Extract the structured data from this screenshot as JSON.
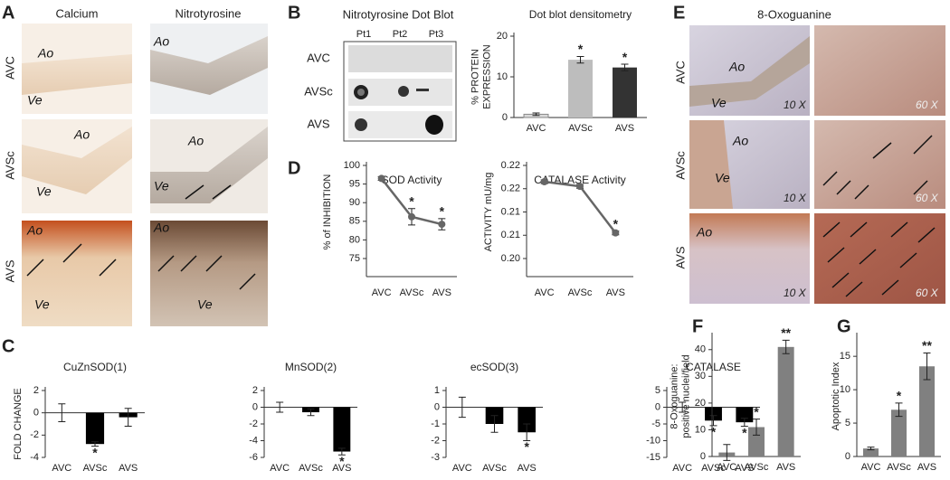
{
  "panels": {
    "A": {
      "label": "A",
      "headers": [
        "Calcium",
        "Nitrotyrosine"
      ],
      "rows": [
        "AVC",
        "AVSc",
        "AVS"
      ],
      "annotations": {
        "ao": "Ao",
        "ve": "Ve"
      }
    },
    "B": {
      "label": "B",
      "title": "Nitrotyrosine Dot Blot",
      "columns": [
        "Pt1",
        "Pt2",
        "Pt3"
      ],
      "rows": [
        "AVC",
        "AVSc",
        "AVS"
      ]
    },
    "C": {
      "label": "C"
    },
    "D": {
      "label": "D"
    },
    "E": {
      "label": "E",
      "title": "8-Oxoguanine",
      "rows": [
        "AVC",
        "AVSc",
        "AVS"
      ],
      "magnifications": [
        "10 X",
        "60 X"
      ],
      "annotations": {
        "ao": "Ao",
        "ve": "Ve"
      }
    },
    "F": {
      "label": "F"
    },
    "G": {
      "label": "G"
    }
  },
  "chart_data": [
    {
      "type": "bar",
      "title": "Dot blot densitometry",
      "ylabel": [
        "% PROTEIN",
        "EXPRESSION"
      ],
      "categories": [
        "AVC",
        "AVSc",
        "AVS"
      ],
      "values": [
        0.8,
        14.2,
        12.3
      ],
      "errors": [
        0.3,
        0.8,
        0.8
      ],
      "colors": [
        "#d9d9d9",
        "#bdbdbd",
        "#333333"
      ],
      "ylim": [
        0,
        20
      ],
      "yticks": [
        0,
        10,
        20
      ],
      "annotations": [
        {
          "x": "AVSc",
          "text": "*"
        },
        {
          "x": "AVS",
          "text": "*"
        }
      ]
    },
    {
      "type": "line",
      "title": "SOD Activity",
      "ylabel": [
        "% of INHIBITION"
      ],
      "categories": [
        "AVC",
        "AVSc",
        "AVS"
      ],
      "values": [
        96.5,
        86.2,
        84.2
      ],
      "errors": [
        0.5,
        2.2,
        1.5
      ],
      "color": "#666666",
      "ylim": [
        75,
        100
      ],
      "yticks": [
        75,
        80,
        85,
        90,
        95,
        100
      ],
      "annotations": [
        {
          "x": "AVSc",
          "text": "*"
        },
        {
          "x": "AVS",
          "text": "*"
        }
      ]
    },
    {
      "type": "line",
      "title": "CATALASE Activity",
      "ylabel": [
        "ACTIVITY mU/mg"
      ],
      "categories": [
        "AVC",
        "AVSc",
        "AVS"
      ],
      "values": [
        0.2165,
        0.2155,
        0.2055
      ],
      "errors": [
        0.0004,
        0.0004,
        0.0004
      ],
      "color": "#666666",
      "ylim": [
        0.2,
        0.22
      ],
      "yticks": [
        {
          "value": 0.2,
          "label": "0.20"
        },
        {
          "value": 0.205,
          "label": "0.21"
        },
        0.21,
        {
          "value": 0.215,
          "label": "0.22"
        },
        0.22
      ],
      "annotations": [
        {
          "x": "AVS",
          "text": "*"
        }
      ]
    },
    {
      "type": "bar",
      "title": "CuZnSOD(1)",
      "ylabel": [
        "FOLD CHANGE"
      ],
      "categories": [
        "AVC",
        "AVSc",
        "AVS"
      ],
      "values": [
        0,
        -2.8,
        -0.4
      ],
      "errors": [
        0.8,
        0.2,
        0.8
      ],
      "colors": [
        "#000000",
        "#000000",
        "#000000"
      ],
      "ylim": [
        -4,
        2
      ],
      "yticks": [
        -4,
        -2,
        0,
        2
      ],
      "annotations": [
        {
          "x": "AVSc",
          "text": "*"
        }
      ]
    },
    {
      "type": "bar",
      "title": "MnSOD(2)",
      "categories": [
        "AVC",
        "AVSc",
        "AVS"
      ],
      "values": [
        0,
        -0.6,
        -5.3
      ],
      "errors": [
        0.6,
        0.4,
        0.4
      ],
      "colors": [
        "#000000",
        "#000000",
        "#000000"
      ],
      "ylim": [
        -6,
        2
      ],
      "yticks": [
        -6,
        -4,
        -2,
        0,
        2
      ],
      "annotations": [
        {
          "x": "AVS",
          "text": "*"
        }
      ]
    },
    {
      "type": "bar",
      "title": "ecSOD(3)",
      "categories": [
        "AVC",
        "AVSc",
        "AVS"
      ],
      "values": [
        0,
        -1,
        -1.5
      ],
      "errors": [
        0.6,
        0.5,
        0.5
      ],
      "colors": [
        "#000000",
        "#000000",
        "#000000"
      ],
      "ylim": [
        -3,
        1
      ],
      "yticks": [
        -3,
        -2,
        -1,
        0,
        1
      ],
      "annotations": [
        {
          "x": "AVS",
          "text": "*"
        }
      ]
    },
    {
      "type": "bar",
      "title": "CATALASE",
      "categories": [
        "AVC",
        "AVSc",
        "AVS"
      ],
      "values": [
        0,
        -4,
        -4.5
      ],
      "errors": [
        1.5,
        1.5,
        1.2
      ],
      "colors": [
        "#000000",
        "#000000",
        "#000000"
      ],
      "ylim": [
        -15,
        5
      ],
      "yticks": [
        -15,
        -10,
        -5,
        0,
        5
      ],
      "annotations": [
        {
          "x": "AVSc",
          "text": "*"
        },
        {
          "x": "AVS",
          "text": "*"
        }
      ]
    },
    {
      "type": "bar",
      "ylabel": [
        "8-Oxoguanine:",
        "positive nuclei/field"
      ],
      "categories": [
        "AVC",
        "AVSc",
        "AVS"
      ],
      "values": [
        1.5,
        11,
        41
      ],
      "errors": [
        3,
        3,
        2.5
      ],
      "colors": [
        "#808080",
        "#808080",
        "#808080"
      ],
      "ylim": [
        0,
        45
      ],
      "yticks": [
        0,
        10,
        20,
        30,
        40
      ],
      "annotations": [
        {
          "x": "AVSc",
          "text": "*"
        },
        {
          "x": "AVS",
          "text": "**"
        }
      ]
    },
    {
      "type": "bar",
      "ylabel": [
        "Apoptotic Index"
      ],
      "categories": [
        "AVC",
        "AVSc",
        "AVS"
      ],
      "values": [
        1.2,
        7,
        13.5
      ],
      "errors": [
        0.2,
        1,
        2
      ],
      "colors": [
        "#808080",
        "#808080",
        "#808080"
      ],
      "ylim": [
        0,
        18
      ],
      "yticks": [
        0,
        5,
        10,
        15
      ],
      "annotations": [
        {
          "x": "AVSc",
          "text": "*"
        },
        {
          "x": "AVS",
          "text": "**"
        }
      ]
    }
  ]
}
